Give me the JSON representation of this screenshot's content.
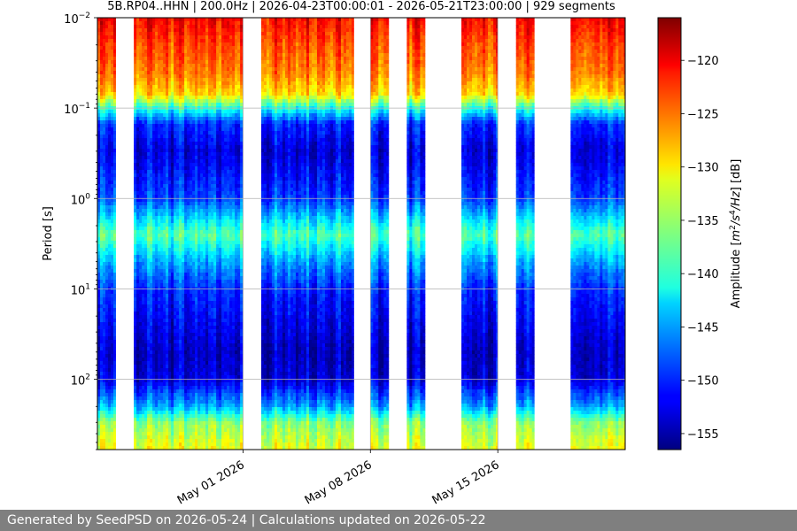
{
  "chart_data": {
    "type": "heatmap",
    "title": "5B.RP04..HHN | 200.0Hz | 2026-04-23T00:00:01 - 2026-05-21T23:00:00 | 929 segments",
    "ylabel": "Period [s]",
    "yscale": "log",
    "yinverted": true,
    "ylim": [
      0.01,
      600
    ],
    "y_ticks": [
      {
        "value": 0.01,
        "base": "10",
        "exp": "−2"
      },
      {
        "value": 0.1,
        "base": "10",
        "exp": "−1"
      },
      {
        "value": 1,
        "base": "10",
        "exp": "0"
      },
      {
        "value": 10,
        "base": "10",
        "exp": "1"
      },
      {
        "value": 100,
        "base": "10",
        "exp": "2"
      }
    ],
    "xlim": [
      "2026-04-23",
      "2026-05-22"
    ],
    "x_ticks": [
      {
        "date": "2026-05-01",
        "label": "May 01 2026"
      },
      {
        "date": "2026-05-08",
        "label": "May 08 2026"
      },
      {
        "date": "2026-05-15",
        "label": "May 15 2026"
      }
    ],
    "grid": true,
    "colorbar": {
      "label": "Amplitude [m²/s⁴/Hz] [dB]",
      "label_parts": [
        "Amplitude [",
        "m",
        "2",
        "/s",
        "4",
        "/Hz",
        "] [dB]"
      ],
      "min": -156.5,
      "max": -116,
      "ticks": [
        -120,
        -125,
        -130,
        -135,
        -140,
        -145,
        -150,
        -155
      ],
      "colormap": "jet"
    },
    "data_intervals": [
      [
        "2026-04-23T00:00",
        "2026-04-24T00:00"
      ],
      [
        "2026-04-25T00:00",
        "2026-05-01T00:00"
      ],
      [
        "2026-05-02T00:00",
        "2026-05-07T02:00"
      ],
      [
        "2026-05-08T00:00",
        "2026-05-09T00:00"
      ],
      [
        "2026-05-10T00:00",
        "2026-05-11T00:00"
      ],
      [
        "2026-05-13T00:00",
        "2026-05-15T00:00"
      ],
      [
        "2026-05-16T00:00",
        "2026-05-17T00:00"
      ],
      [
        "2026-05-19T00:00",
        "2026-05-22T00:00"
      ]
    ],
    "psd_profile": [
      {
        "period": 0.01,
        "db": -121
      },
      {
        "period": 0.02,
        "db": -124
      },
      {
        "period": 0.04,
        "db": -126
      },
      {
        "period": 0.07,
        "db": -130
      },
      {
        "period": 0.1,
        "db": -140
      },
      {
        "period": 0.15,
        "db": -150
      },
      {
        "period": 0.3,
        "db": -153
      },
      {
        "period": 1,
        "db": -149
      },
      {
        "period": 2.5,
        "db": -138
      },
      {
        "period": 5,
        "db": -145
      },
      {
        "period": 10,
        "db": -150
      },
      {
        "period": 50,
        "db": -154
      },
      {
        "period": 100,
        "db": -153
      },
      {
        "period": 200,
        "db": -145
      },
      {
        "period": 300,
        "db": -136
      },
      {
        "period": 600,
        "db": -132
      }
    ]
  },
  "footer": {
    "text": "Generated by SeedPSD on 2026-05-24 | Calculations updated on 2026-05-22"
  }
}
